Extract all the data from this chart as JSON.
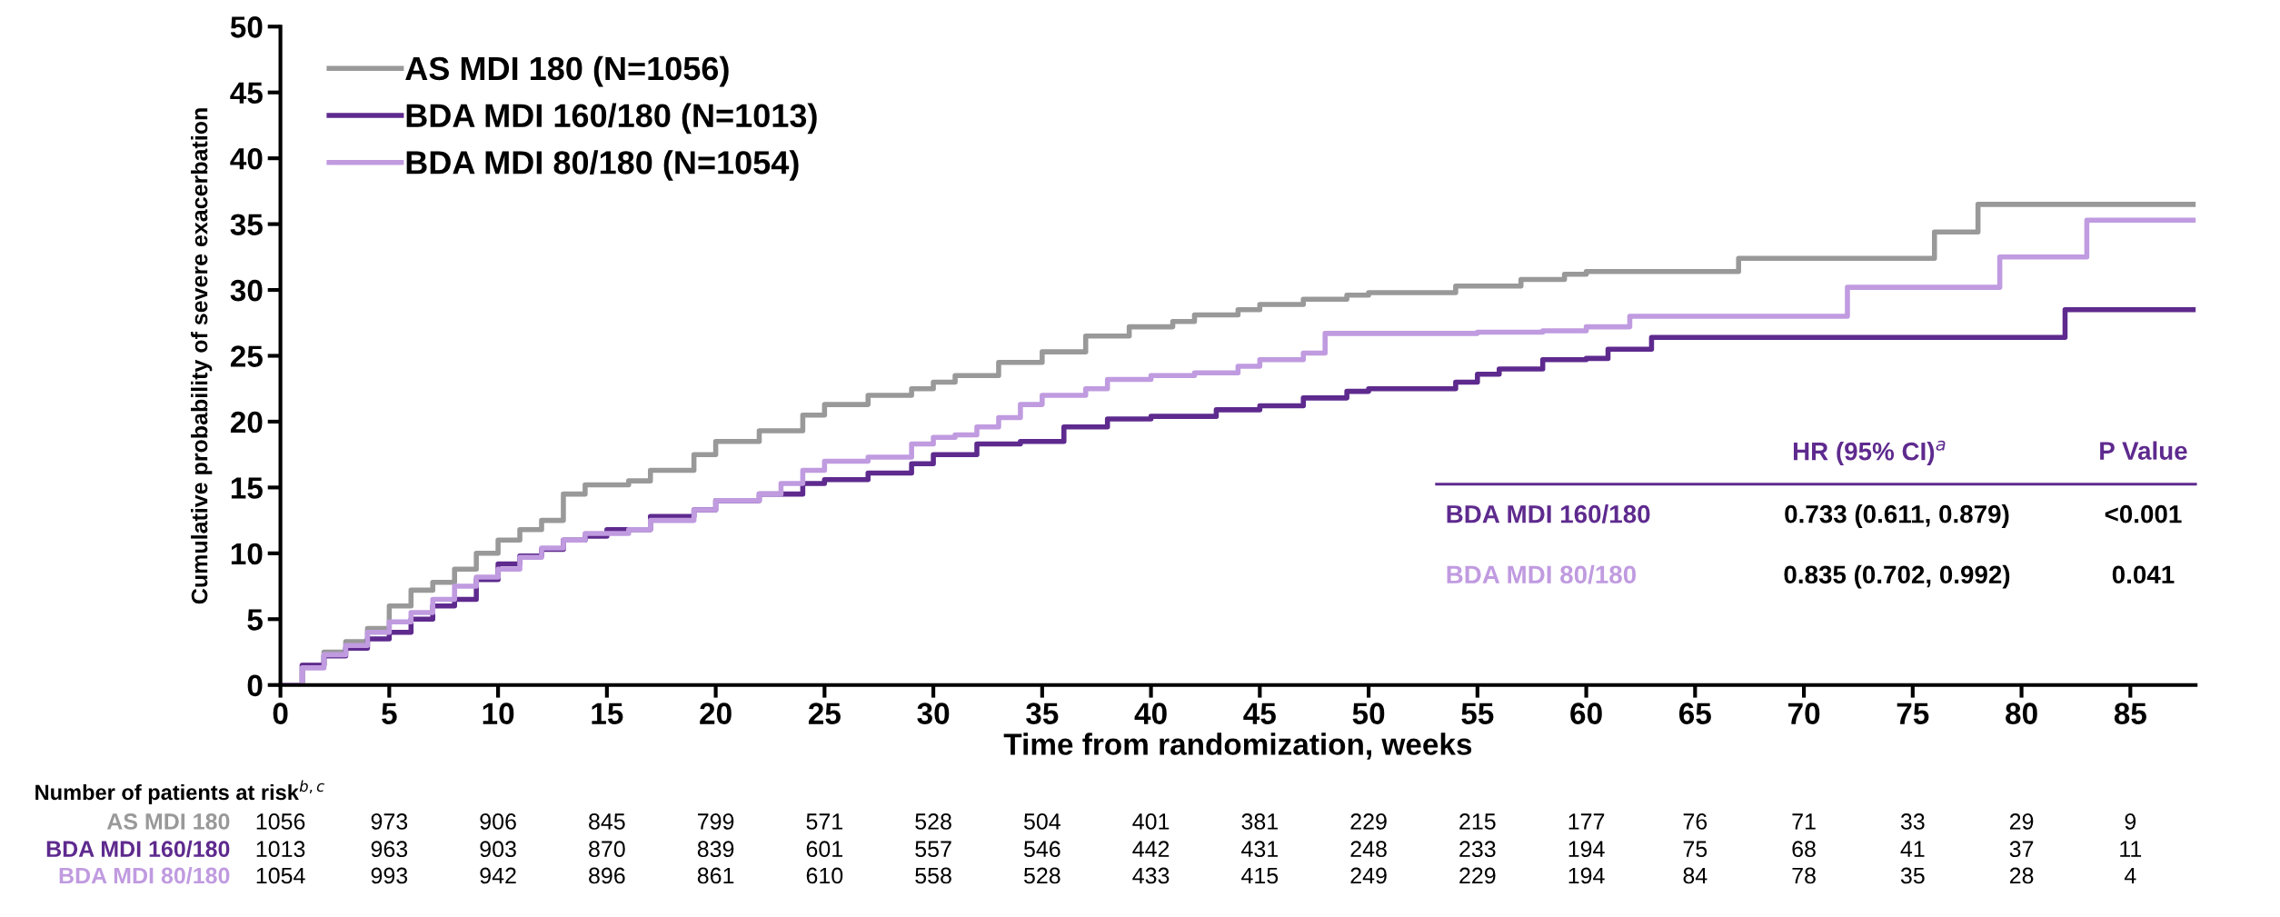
{
  "chart_data": {
    "type": "step",
    "ylabel": "Cumulative probability of severe exacerbation",
    "xlabel": "Time from randomization, weeks",
    "xlim": [
      0,
      88
    ],
    "xticks": [
      0,
      5,
      10,
      15,
      20,
      25,
      30,
      35,
      40,
      45,
      50,
      55,
      60,
      65,
      70,
      75,
      80,
      85
    ],
    "ylim": [
      0,
      50
    ],
    "yticks": [
      0,
      5,
      10,
      15,
      20,
      25,
      30,
      35,
      40,
      45,
      50
    ],
    "grid": false,
    "legend": "top left",
    "marker": "none",
    "line_style": "solid",
    "series": [
      {
        "name": "AS MDI 180 (N=1056)",
        "color": "#999999",
        "x": [
          0,
          1,
          2,
          3,
          4,
          5,
          6,
          7,
          8,
          9,
          10,
          11,
          12,
          13,
          14,
          16,
          17,
          19,
          20,
          22,
          24,
          25,
          27,
          29,
          30,
          31,
          33,
          35,
          37,
          39,
          41,
          42,
          44,
          45,
          47,
          49,
          50,
          54,
          57,
          59,
          60,
          67,
          76,
          78,
          88
        ],
        "values": [
          0,
          1.5,
          2.5,
          3.3,
          4.3,
          6,
          7.2,
          7.8,
          8.8,
          10,
          11,
          11.8,
          12.5,
          14.5,
          15.2,
          15.5,
          16.3,
          17.5,
          18.5,
          19.3,
          20.5,
          21.3,
          22,
          22.5,
          23,
          23.5,
          24.5,
          25.3,
          26.5,
          27.2,
          27.6,
          28.1,
          28.5,
          28.9,
          29.3,
          29.6,
          29.8,
          30.3,
          30.8,
          31.2,
          31.4,
          32.4,
          34.4,
          36.5,
          36.5
        ]
      },
      {
        "name": "BDA MDI 160/180 (N=1013)",
        "color": "#5e2a8e",
        "x": [
          0,
          1,
          2,
          3,
          4,
          5,
          6,
          7,
          8,
          9,
          10,
          11,
          12,
          13,
          14,
          15,
          17,
          19,
          20,
          22,
          24,
          25,
          27,
          29,
          30,
          32,
          34,
          36,
          38,
          40,
          43,
          45,
          47,
          49,
          50,
          54,
          55,
          56,
          58,
          60,
          61,
          63,
          82,
          88
        ],
        "values": [
          0,
          1.5,
          2.2,
          2.8,
          3.5,
          4,
          5,
          6,
          6.5,
          8,
          9.2,
          9.8,
          10.3,
          11,
          11.3,
          11.8,
          12.8,
          13.3,
          14,
          14.5,
          15.3,
          15.6,
          16.1,
          16.8,
          17.5,
          18.3,
          18.5,
          19.6,
          20.2,
          20.4,
          20.9,
          21.2,
          21.8,
          22.3,
          22.5,
          23,
          23.6,
          24,
          24.7,
          24.8,
          25.5,
          26.4,
          28.5,
          28.5
        ]
      },
      {
        "name": "BDA MDI 80/180 (N=1054)",
        "color": "#c09be0",
        "x": [
          0,
          1,
          2,
          3,
          4,
          5,
          6,
          7,
          8,
          9,
          10,
          11,
          12,
          13,
          14,
          16,
          17,
          19,
          20,
          22,
          23,
          24,
          25,
          27,
          29,
          30,
          31,
          32,
          33,
          34,
          35,
          37,
          38,
          40,
          42,
          44,
          45,
          47,
          48,
          55,
          58,
          60,
          62,
          72,
          79,
          83,
          88
        ],
        "values": [
          0,
          1.3,
          2.3,
          3,
          4,
          4.8,
          5.5,
          6.5,
          7.5,
          8.2,
          8.8,
          9.7,
          10.4,
          11,
          11.5,
          11.8,
          12.5,
          13.3,
          14,
          14.5,
          15.3,
          16.3,
          17,
          17.3,
          18.3,
          18.8,
          19,
          19.6,
          20.3,
          21.3,
          22,
          22.5,
          23.2,
          23.5,
          23.7,
          24.2,
          24.7,
          25.2,
          26.7,
          26.8,
          26.9,
          27.2,
          28,
          30.2,
          32.5,
          35.3,
          35.3
        ]
      }
    ],
    "annotations": [
      "Number of patients at risk$^{b,c}$",
      "AS MDI 180",
      "1056",
      "973",
      "906",
      "845",
      "799",
      "571",
      "528",
      "504",
      "401",
      "381",
      "229",
      "215",
      "177",
      "76",
      "71",
      "33",
      "29",
      "9",
      "BDA MDI 160/180",
      "1013",
      "963",
      "903",
      "870",
      "839",
      "601",
      "557",
      "546",
      "442",
      "431",
      "248",
      "233",
      "194",
      "75",
      "68",
      "41",
      "37",
      "11",
      "BDA MDI 80/180",
      "1054",
      "993",
      "942",
      "896",
      "861",
      "610",
      "558",
      "528",
      "433",
      "415",
      "249",
      "229",
      "194",
      "84",
      "78",
      "35",
      "28",
      "4",
      "HR (95% CI)$^{a}$",
      "P Value",
      "BDA MDI 160/180",
      "0.733 (0.611, 0.879)",
      "<0.001",
      "BDA MDI 80/180",
      "0.835 (0.702, 0.992)",
      "0.041"
    ]
  }
}
